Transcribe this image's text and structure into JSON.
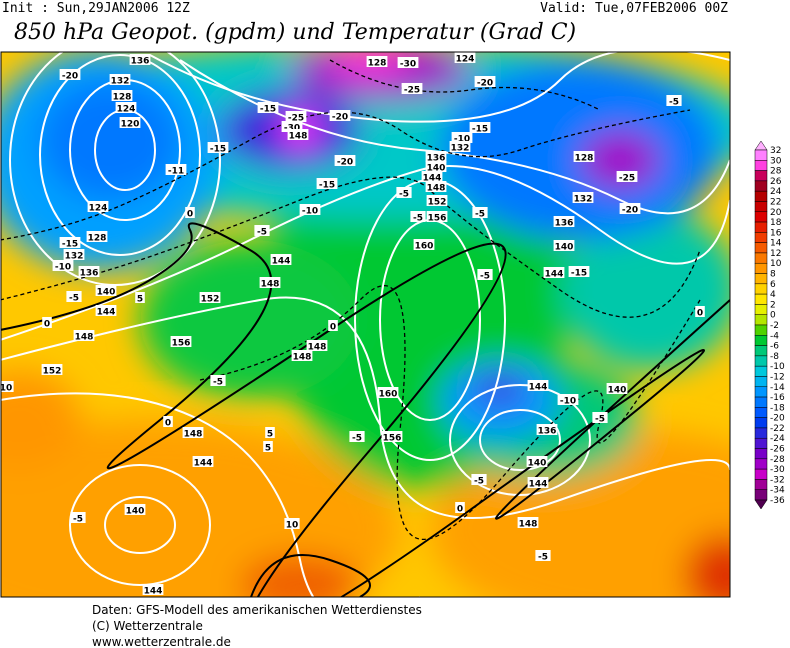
{
  "header": {
    "init": "Init : Sun,29JAN2006 12Z",
    "valid": "Valid: Tue,07FEB2006 00Z",
    "title": "850 hPa Geopot. (gpdm) und Temperatur (Grad C)"
  },
  "map": {
    "contour_labels": [
      "136",
      "132",
      "128",
      "124",
      "120",
      "-20",
      "-15",
      "-25",
      "-30",
      "148",
      "-20",
      "-15",
      "-11",
      "0",
      "-10",
      "-15",
      "-20",
      "128",
      "-30",
      "124",
      "-20",
      "-25",
      "-15",
      "-10",
      "132",
      "136",
      "140",
      "144",
      "148",
      "-5",
      "152",
      "-5",
      "-5",
      "156",
      "160",
      "-5",
      "-5",
      "128",
      "-25",
      "132",
      "-20",
      "136",
      "140",
      "144",
      "-15",
      "124",
      "128",
      "-15",
      "132",
      "-10",
      "136",
      "140",
      "-5",
      "5",
      "144",
      "148",
      "0",
      "152",
      "144",
      "148",
      "-5",
      "0",
      "156",
      "148",
      "148",
      "-5",
      "152",
      "10",
      "160",
      "0",
      "148",
      "5",
      "5",
      "-5",
      "156",
      "144",
      "-10",
      "-5",
      "136",
      "140",
      "144",
      "-5",
      "0",
      "140",
      "0",
      "144",
      "-5",
      "140",
      "10",
      "148",
      "-5",
      "144"
    ]
  },
  "colorbar": {
    "ticks": [
      32,
      30,
      28,
      26,
      24,
      22,
      20,
      18,
      16,
      14,
      12,
      10,
      8,
      6,
      4,
      2,
      0,
      -2,
      -4,
      -6,
      -8,
      -10,
      -12,
      -14,
      -16,
      -18,
      -20,
      -22,
      -24,
      -26,
      -28,
      -30,
      -32,
      -34,
      -36
    ],
    "colors": [
      "#ffb0ff",
      "#ff80ff",
      "#ff40e0",
      "#c8005a",
      "#a00020",
      "#b40000",
      "#c80000",
      "#dc0000",
      "#e61e00",
      "#f03c00",
      "#f55a00",
      "#fa7800",
      "#ff9600",
      "#ffb400",
      "#ffd200",
      "#ffe600",
      "#e6f000",
      "#b4e600",
      "#50d200",
      "#00c832",
      "#00c878",
      "#00c8aa",
      "#00c8dc",
      "#00b4f0",
      "#0096ff",
      "#0078ff",
      "#005aff",
      "#003cf0",
      "#2828dc",
      "#5014d2",
      "#7800c8",
      "#a000c8",
      "#c800c8",
      "#a00096",
      "#780078",
      "#500050"
    ]
  },
  "footer": {
    "lines": [
      "Daten: GFS-Modell des amerikanischen Wetterdienstes",
      "(C) Wetterzentrale",
      "www.wetterzentrale.de"
    ]
  }
}
